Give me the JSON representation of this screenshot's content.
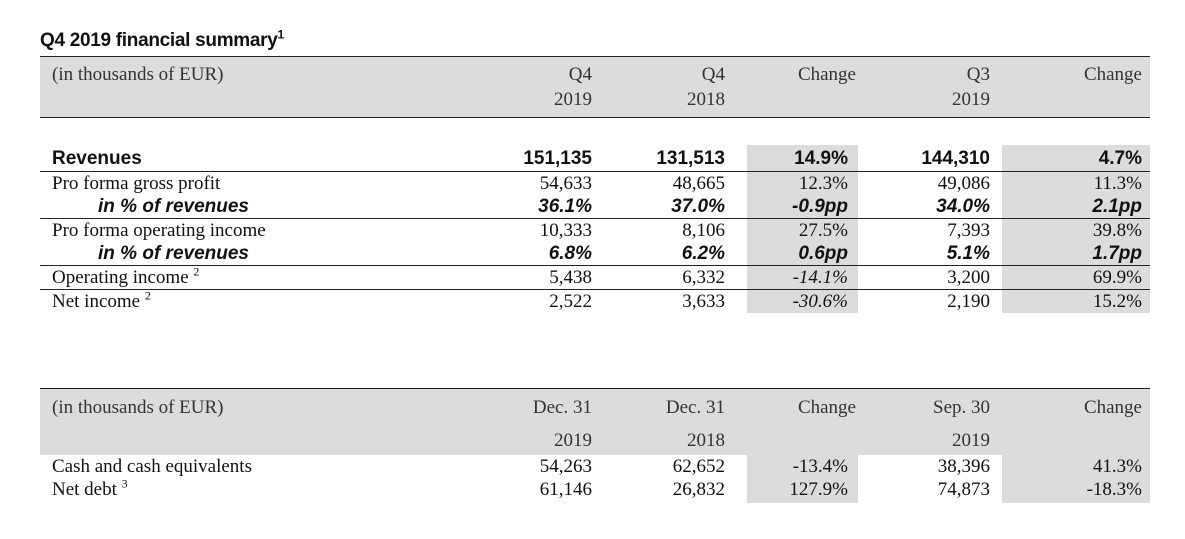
{
  "title": "Q4 2019 financial summary",
  "title_note": "1",
  "table1": {
    "header": {
      "unit": "(in thousands of EUR)",
      "c1a": "Q4",
      "c1b": "2019",
      "c2a": "Q4",
      "c2b": "2018",
      "c3": "Change",
      "c4a": "Q3",
      "c4b": "2019",
      "c5": "Change"
    },
    "rows": [
      {
        "label": "Revenues",
        "note": "",
        "c1": "151,135",
        "c2": "131,513",
        "c3": "14.9%",
        "c4": "144,310",
        "c5": "4.7%"
      },
      {
        "label": "Pro forma gross profit",
        "note": "",
        "c1": "54,633",
        "c2": "48,665",
        "c3": "12.3%",
        "c4": "49,086",
        "c5": "11.3%"
      },
      {
        "label": "in % of revenues",
        "note": "",
        "c1": "36.1%",
        "c2": "37.0%",
        "c3": "-0.9pp",
        "c4": "34.0%",
        "c5": "2.1pp"
      },
      {
        "label": "Pro forma operating income",
        "note": "",
        "c1": "10,333",
        "c2": "8,106",
        "c3": "27.5%",
        "c4": "7,393",
        "c5": "39.8%"
      },
      {
        "label": "in % of revenues",
        "note": "",
        "c1": "6.8%",
        "c2": "6.2%",
        "c3": "0.6pp",
        "c4": "5.1%",
        "c5": "1.7pp"
      },
      {
        "label": "Operating income",
        "note": "2",
        "c1": "5,438",
        "c2": "6,332",
        "c3": "-14.1%",
        "c4": "3,200",
        "c5": "69.9%"
      },
      {
        "label": "Net income",
        "note": "2",
        "c1": "2,522",
        "c2": "3,633",
        "c3": "-30.6%",
        "c4": "2,190",
        "c5": "15.2%"
      }
    ]
  },
  "table2": {
    "header": {
      "unit": "(in thousands of EUR)",
      "c1a": "Dec. 31",
      "c1b": "2019",
      "c2a": "Dec. 31",
      "c2b": "2018",
      "c3": "Change",
      "c4a": "Sep. 30",
      "c4b": "2019",
      "c5": "Change"
    },
    "rows": [
      {
        "label": "Cash and cash equivalents",
        "note": "",
        "c1": "54,263",
        "c2": "62,652",
        "c3": "-13.4%",
        "c4": "38,396",
        "c5": "41.3%"
      },
      {
        "label": "Net debt",
        "note": "3",
        "c1": "61,146",
        "c2": "26,832",
        "c3": "127.9%",
        "c4": "74,873",
        "c5": "-18.3%"
      }
    ]
  }
}
